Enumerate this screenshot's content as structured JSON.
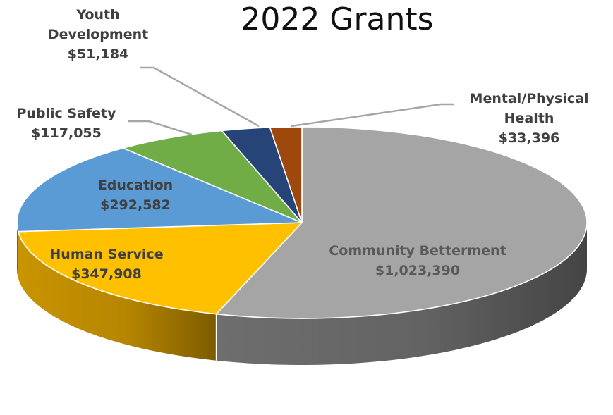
{
  "chart_data": {
    "type": "pie",
    "title": "2022 Grants",
    "slices": [
      {
        "name": "Community Betterment",
        "value": 1023390,
        "label": "$1,023,390",
        "color": "#A5A5A5",
        "side_color": "#6E6E6E",
        "label_inside": true
      },
      {
        "name": "Human Service",
        "value": 347908,
        "label": "$347,908",
        "color": "#FFC000",
        "side_color": "#C99400",
        "label_inside": true
      },
      {
        "name": "Education",
        "value": 292582,
        "label": "$292,582",
        "color": "#5B9BD5",
        "side_color": "#3F73A3",
        "label_inside": true
      },
      {
        "name": "Public Safety",
        "value": 117055,
        "label": "$117,055",
        "color": "#70AD47",
        "side_color": "#4E7F31",
        "label_inside": false
      },
      {
        "name": "Youth Development",
        "value": 51184,
        "label": "$51,184",
        "color": "#264478",
        "side_color": "#182D50",
        "label_inside": false
      },
      {
        "name": "Mental/Physical Health",
        "value": 33396,
        "label": "$33,396",
        "color": "#9E480E",
        "side_color": "#6B2F08",
        "label_inside": false
      }
    ],
    "style": "3d-pie",
    "legend": "none"
  }
}
